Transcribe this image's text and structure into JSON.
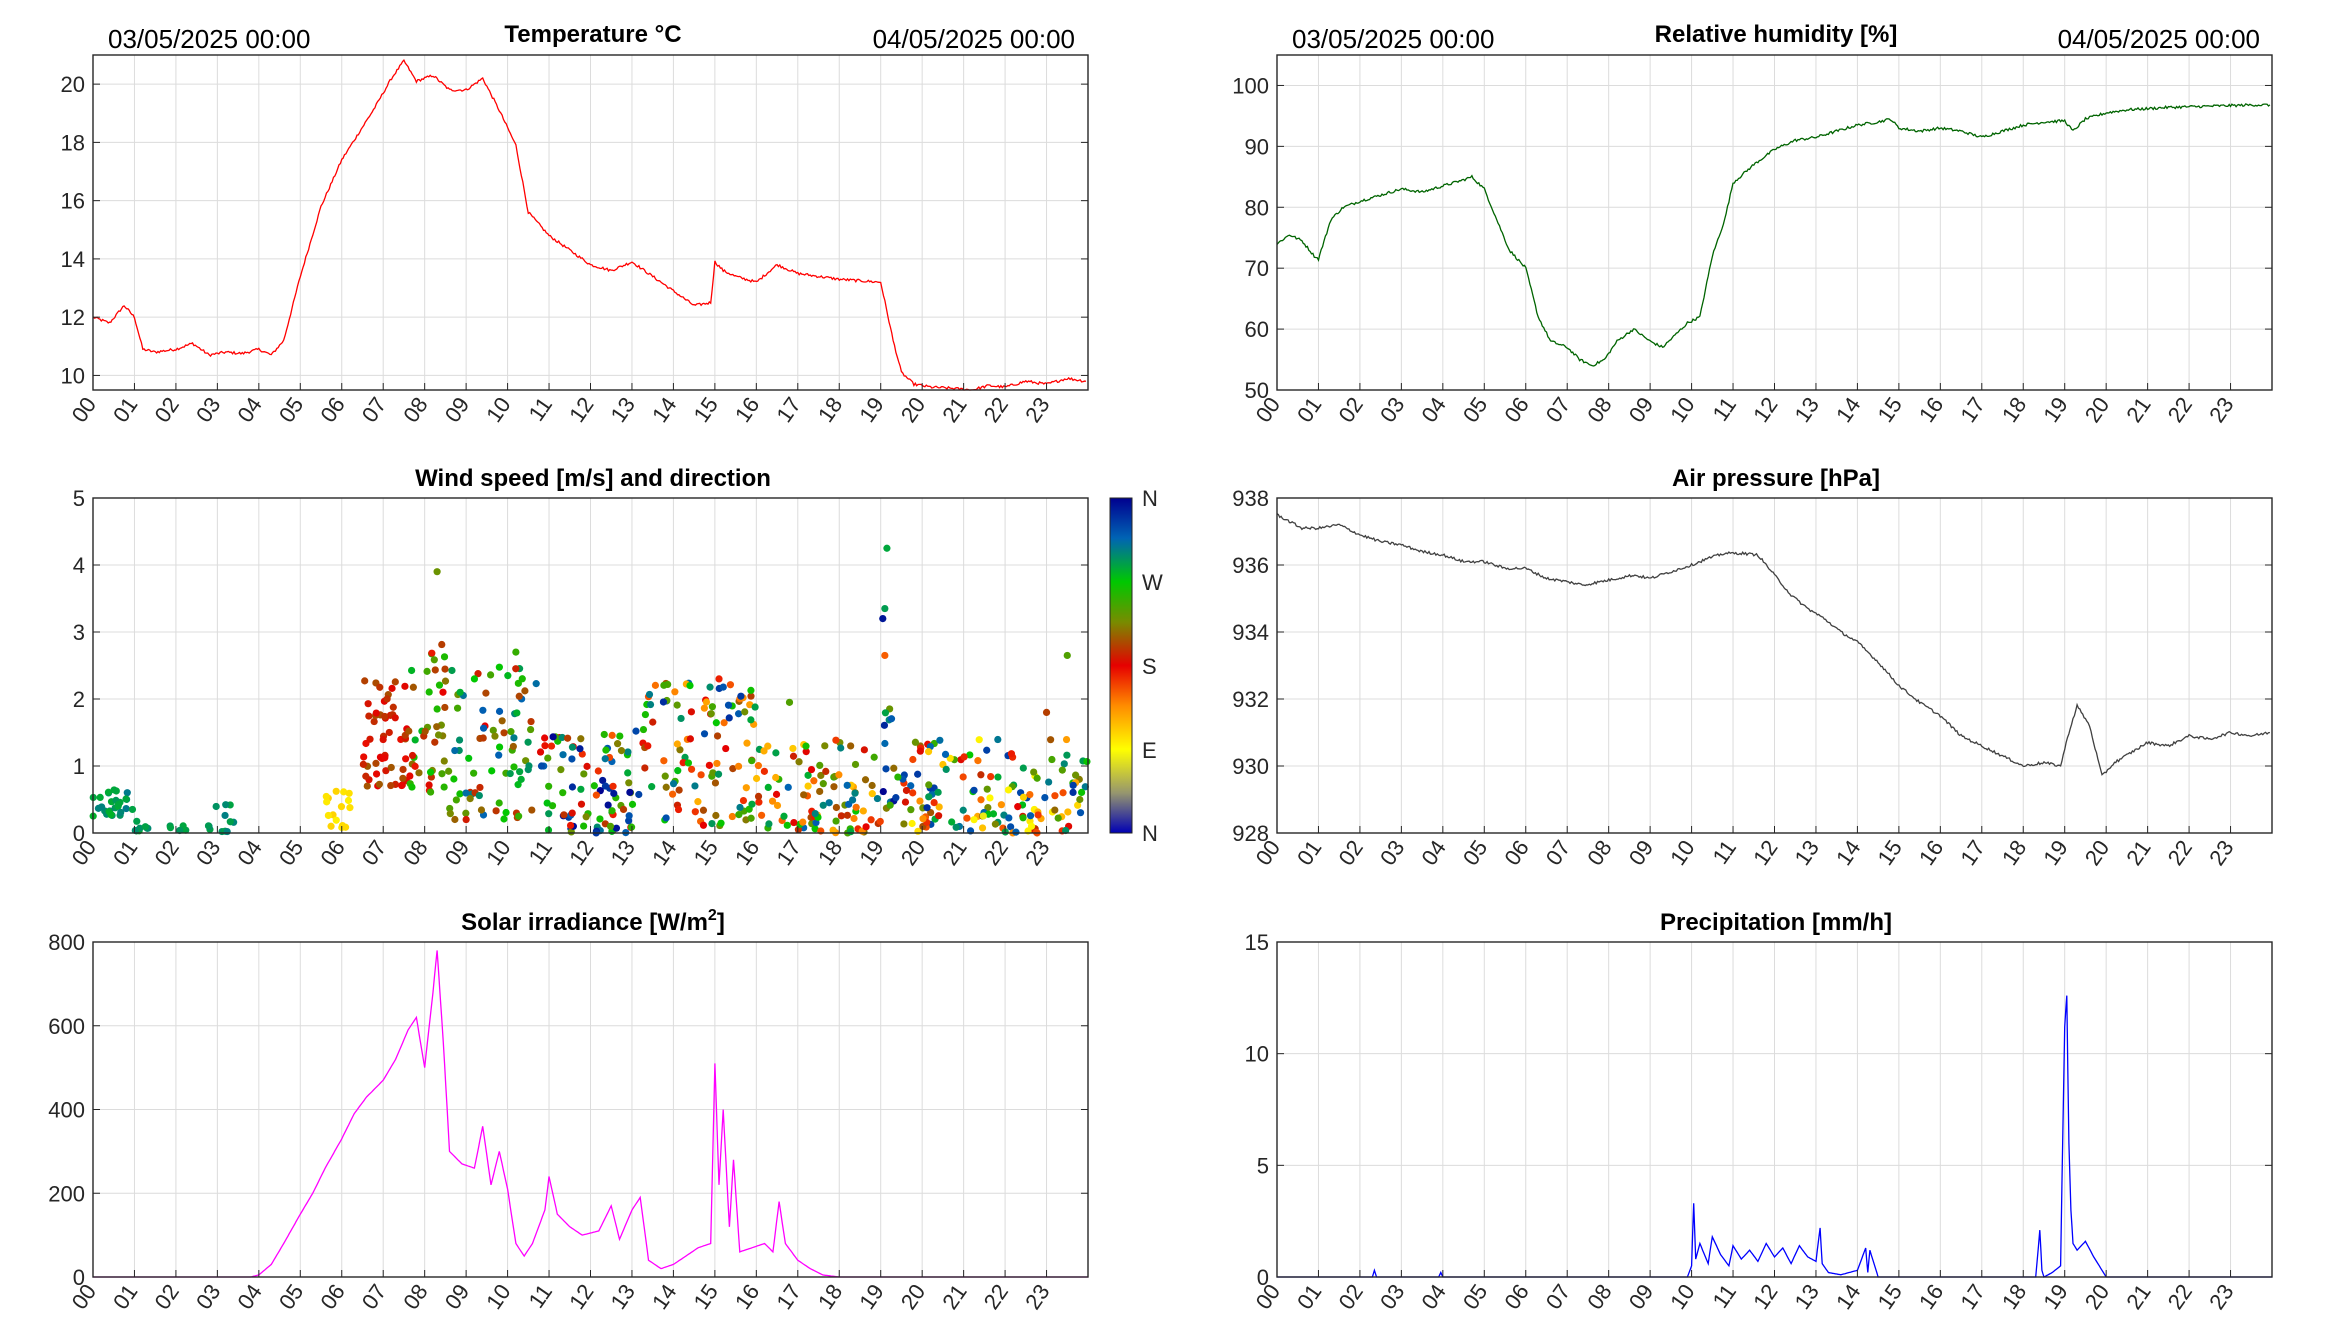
{
  "page": {
    "start_label": "03/05/2025 00:00",
    "end_label": "04/05/2025 00:00"
  },
  "hour_ticks": [
    "00",
    "01",
    "02",
    "03",
    "04",
    "05",
    "06",
    "07",
    "08",
    "09",
    "10",
    "11",
    "12",
    "13",
    "14",
    "15",
    "16",
    "17",
    "18",
    "19",
    "20",
    "21",
    "22",
    "23"
  ],
  "colorbar": {
    "labels": [
      "N",
      "W",
      "S",
      "E",
      "N"
    ],
    "colors": [
      "#00008f",
      "#00c800",
      "#e60000",
      "#ffff00",
      "#0000b4"
    ]
  },
  "chart_data": [
    {
      "id": "temperature",
      "type": "line",
      "title": "Temperature °C",
      "color": "#ff0000",
      "xlim": [
        0,
        24
      ],
      "ylim": [
        9.5,
        21
      ],
      "yticks": [
        10,
        12,
        14,
        16,
        18,
        20
      ],
      "series": [
        {
          "x": [
            0,
            0.4,
            0.75,
            1.0,
            1.2,
            1.5,
            2.0,
            2.4,
            2.8,
            3.2,
            3.6,
            4.0,
            4.3,
            4.6,
            5.0,
            5.5,
            6.0,
            6.4,
            6.8,
            7.2,
            7.5,
            7.8,
            8.2,
            8.6,
            9.0,
            9.4,
            9.8,
            10.2,
            10.5,
            11.0,
            11.5,
            12.0,
            12.5,
            13.0,
            13.4,
            14.0,
            14.5,
            14.9,
            15.0,
            15.2,
            15.5,
            16.0,
            16.5,
            17.0,
            17.5,
            18.0,
            18.5,
            19.0,
            19.3,
            19.5,
            19.8,
            20.2,
            20.8,
            21.2,
            21.6,
            22.0,
            22.5,
            23.0,
            23.5,
            23.95
          ],
          "y": [
            12.0,
            11.8,
            12.4,
            12.0,
            10.9,
            10.8,
            10.9,
            11.1,
            10.7,
            10.8,
            10.75,
            10.9,
            10.7,
            11.2,
            13.4,
            15.8,
            17.4,
            18.3,
            19.2,
            20.2,
            20.8,
            20.1,
            20.3,
            19.8,
            19.8,
            20.2,
            19.1,
            17.9,
            15.6,
            14.8,
            14.3,
            13.8,
            13.6,
            13.9,
            13.5,
            12.9,
            12.4,
            12.5,
            13.9,
            13.6,
            13.4,
            13.2,
            13.8,
            13.5,
            13.4,
            13.3,
            13.25,
            13.2,
            11.2,
            10.1,
            9.7,
            9.6,
            9.55,
            9.5,
            9.65,
            9.6,
            9.8,
            9.7,
            9.9,
            9.8
          ]
        }
      ]
    },
    {
      "id": "humidity",
      "type": "line",
      "title": "Relative humidity [%]",
      "color": "#006400",
      "xlim": [
        0,
        24
      ],
      "ylim": [
        50,
        105
      ],
      "yticks": [
        50,
        60,
        70,
        80,
        90,
        100
      ],
      "series": [
        {
          "x": [
            0,
            0.3,
            0.6,
            0.9,
            1.0,
            1.3,
            1.6,
            2.0,
            2.5,
            3.0,
            3.5,
            4.0,
            4.5,
            4.7,
            5.0,
            5.3,
            5.6,
            6.0,
            6.3,
            6.6,
            7.0,
            7.3,
            7.6,
            7.9,
            8.2,
            8.6,
            9.0,
            9.3,
            9.6,
            9.9,
            10.2,
            10.5,
            10.8,
            11.0,
            11.5,
            12.0,
            12.5,
            13.0,
            13.5,
            14.0,
            14.5,
            14.8,
            15.0,
            15.5,
            16.0,
            16.5,
            17.0,
            17.5,
            18.0,
            18.5,
            19.0,
            19.2,
            19.5,
            20.0,
            20.5,
            21.0,
            21.5,
            22.0,
            22.5,
            23.0,
            23.5,
            23.95
          ],
          "y": [
            74,
            75.5,
            74.5,
            72,
            71.5,
            78,
            80,
            81,
            82,
            83,
            82.5,
            83.5,
            84.5,
            85,
            83,
            78,
            73,
            70,
            62,
            58,
            57,
            55,
            54,
            55,
            58,
            60,
            58,
            57,
            59,
            61,
            62,
            72,
            78,
            84,
            87,
            89.5,
            91,
            91.5,
            92.5,
            93.5,
            94,
            94.5,
            93,
            92.5,
            93,
            92.5,
            91.5,
            92.5,
            93.5,
            94,
            94.2,
            92.5,
            94.5,
            95.5,
            96,
            96.2,
            96.4,
            96.5,
            96.6,
            96.7,
            96.8,
            96.8
          ]
        }
      ]
    },
    {
      "id": "wind",
      "type": "scatter",
      "title": "Wind speed [m/s] and direction",
      "xlim": [
        0,
        24
      ],
      "ylim": [
        0,
        5
      ],
      "yticks": [
        0,
        1,
        2,
        3,
        4,
        5
      ],
      "color_scale": "wind direction (N, E, S, W, N)",
      "clusters": [
        {
          "x0": 0.0,
          "x1": 1.0,
          "ymin": 0.25,
          "ymax": 0.65,
          "n": 28,
          "dir": [
            275,
            305
          ]
        },
        {
          "x0": 1.0,
          "x1": 1.35,
          "ymin": 0.02,
          "ymax": 0.25,
          "n": 8,
          "dir": [
            280,
            300
          ]
        },
        {
          "x0": 1.8,
          "x1": 2.3,
          "ymin": 0.02,
          "ymax": 0.12,
          "n": 6,
          "dir": [
            285,
            300
          ]
        },
        {
          "x0": 2.7,
          "x1": 3.4,
          "ymin": 0.02,
          "ymax": 0.45,
          "n": 12,
          "dir": [
            285,
            305
          ]
        },
        {
          "x0": 5.6,
          "x1": 6.2,
          "ymin": 0.05,
          "ymax": 0.65,
          "n": 16,
          "dir": [
            95,
            110
          ]
        },
        {
          "x0": 6.5,
          "x1": 7.6,
          "ymin": 0.7,
          "ymax": 2.3,
          "n": 55,
          "dir": [
            175,
            210
          ]
        },
        {
          "x0": 7.6,
          "x1": 8.6,
          "ymin": 0.6,
          "ymax": 2.85,
          "n": 45,
          "dir": [
            170,
            280
          ]
        },
        {
          "x0": 8.6,
          "x1": 10.8,
          "ymin": 0.2,
          "ymax": 2.5,
          "n": 80,
          "dir": [
            180,
            320
          ]
        },
        {
          "x0": 10.8,
          "x1": 13.0,
          "ymin": 0.0,
          "ymax": 1.5,
          "n": 90,
          "dir": [
            150,
            360
          ]
        },
        {
          "x0": 13.0,
          "x1": 16.0,
          "ymin": 0.1,
          "ymax": 2.3,
          "n": 110,
          "dir": [
            120,
            340
          ]
        },
        {
          "x0": 16.0,
          "x1": 19.0,
          "ymin": 0.0,
          "ymax": 1.4,
          "n": 100,
          "dir": [
            110,
            320
          ]
        },
        {
          "x0": 19.0,
          "x1": 19.4,
          "ymin": 0.3,
          "ymax": 1.9,
          "n": 14,
          "dir": [
            200,
            360
          ]
        },
        {
          "x0": 19.4,
          "x1": 24.0,
          "ymin": 0.0,
          "ymax": 1.4,
          "n": 150,
          "dir": [
            80,
            340
          ]
        }
      ],
      "points": [
        {
          "x": 8.3,
          "y": 3.9,
          "dir": 230
        },
        {
          "x": 9.2,
          "y": 2.3,
          "dir": 270
        },
        {
          "x": 10.2,
          "y": 2.7,
          "dir": 250
        },
        {
          "x": 15.1,
          "y": 2.3,
          "dir": 170
        },
        {
          "x": 16.8,
          "y": 1.95,
          "dir": 240
        },
        {
          "x": 19.15,
          "y": 4.25,
          "dir": 285
        },
        {
          "x": 19.1,
          "y": 3.35,
          "dir": 290
        },
        {
          "x": 19.05,
          "y": 3.2,
          "dir": 350
        },
        {
          "x": 19.1,
          "y": 2.65,
          "dir": 150
        },
        {
          "x": 23.5,
          "y": 2.65,
          "dir": 240
        },
        {
          "x": 23.0,
          "y": 1.8,
          "dir": 200
        },
        {
          "x": 14.4,
          "y": 2.2,
          "dir": 270
        }
      ]
    },
    {
      "id": "pressure",
      "type": "line",
      "title": "Air pressure [hPa]",
      "color": "#404040",
      "xlim": [
        0,
        24
      ],
      "ylim": [
        928,
        938
      ],
      "yticks": [
        928,
        930,
        932,
        934,
        936,
        938
      ],
      "series": [
        {
          "x": [
            0,
            0.3,
            0.6,
            1.0,
            1.5,
            2.0,
            2.5,
            3.0,
            3.5,
            4.0,
            4.5,
            5.0,
            5.5,
            6.0,
            6.5,
            7.0,
            7.4,
            7.8,
            8.2,
            8.6,
            9.0,
            9.5,
            10.0,
            10.4,
            10.8,
            11.2,
            11.6,
            12.0,
            12.4,
            12.8,
            13.2,
            13.6,
            14.0,
            14.5,
            15.0,
            15.5,
            16.0,
            16.5,
            17.0,
            17.5,
            18.0,
            18.5,
            18.9,
            19.1,
            19.3,
            19.6,
            19.9,
            20.2,
            20.6,
            21.0,
            21.5,
            22.0,
            22.5,
            23.0,
            23.5,
            23.95
          ],
          "y": [
            937.5,
            937.3,
            937.1,
            937.1,
            937.2,
            936.9,
            936.7,
            936.6,
            936.4,
            936.3,
            936.1,
            936.1,
            935.9,
            935.9,
            935.6,
            935.5,
            935.4,
            935.5,
            935.6,
            935.7,
            935.6,
            935.8,
            936.0,
            936.2,
            936.35,
            936.35,
            936.3,
            935.7,
            935.1,
            934.7,
            934.4,
            934.0,
            933.7,
            933.1,
            932.4,
            931.9,
            931.5,
            930.9,
            930.6,
            930.3,
            930.0,
            930.1,
            930.0,
            931.0,
            931.8,
            931.2,
            929.7,
            930.1,
            930.4,
            930.7,
            930.6,
            930.9,
            930.8,
            931.0,
            930.9,
            931.0
          ]
        }
      ]
    },
    {
      "id": "solar",
      "type": "line",
      "title": "Solar irradiance [W/m2]",
      "title_main": "Solar irradiance [W/m",
      "title_sup": "2",
      "title_tail": "]",
      "color": "#ff00ff",
      "xlim": [
        0,
        24
      ],
      "ylim": [
        0,
        800
      ],
      "yticks": [
        0,
        200,
        400,
        600,
        800
      ],
      "series": [
        {
          "x": [
            0,
            3.8,
            4.0,
            4.3,
            4.6,
            5.0,
            5.3,
            5.6,
            6.0,
            6.3,
            6.6,
            7.0,
            7.3,
            7.6,
            7.8,
            8.0,
            8.2,
            8.3,
            8.45,
            8.6,
            8.9,
            9.2,
            9.4,
            9.6,
            9.8,
            10.0,
            10.2,
            10.4,
            10.6,
            10.9,
            11.0,
            11.2,
            11.5,
            11.8,
            12.2,
            12.5,
            12.7,
            13.0,
            13.2,
            13.4,
            13.7,
            14.0,
            14.3,
            14.6,
            14.9,
            15.0,
            15.1,
            15.2,
            15.35,
            15.45,
            15.6,
            15.9,
            16.2,
            16.4,
            16.55,
            16.7,
            17.0,
            17.3,
            17.6,
            18.0,
            24.0
          ],
          "y": [
            0,
            0,
            5,
            30,
            80,
            150,
            200,
            260,
            330,
            390,
            430,
            470,
            520,
            590,
            620,
            500,
            680,
            780,
            560,
            300,
            270,
            260,
            360,
            220,
            300,
            210,
            80,
            50,
            80,
            160,
            240,
            150,
            120,
            100,
            110,
            170,
            90,
            160,
            190,
            40,
            20,
            30,
            50,
            70,
            80,
            510,
            220,
            400,
            120,
            280,
            60,
            70,
            80,
            60,
            180,
            80,
            40,
            20,
            5,
            0,
            0
          ]
        }
      ]
    },
    {
      "id": "precip",
      "type": "line",
      "title": "Precipitation [mm/h]",
      "color": "#0000ff",
      "xlim": [
        0,
        24
      ],
      "ylim": [
        0,
        15
      ],
      "yticks": [
        0,
        5,
        10,
        15
      ],
      "series": [
        {
          "x": [
            0,
            2.3,
            2.35,
            2.4,
            3.9,
            3.95,
            4.0,
            9.9,
            10.0,
            10.05,
            10.1,
            10.2,
            10.4,
            10.5,
            10.7,
            10.9,
            11.0,
            11.2,
            11.4,
            11.6,
            11.8,
            12.0,
            12.2,
            12.4,
            12.6,
            12.8,
            13.0,
            13.1,
            13.15,
            13.3,
            13.6,
            14.0,
            14.2,
            14.25,
            14.3,
            14.5,
            18.3,
            18.4,
            18.45,
            18.5,
            18.7,
            18.9,
            19.0,
            19.05,
            19.1,
            19.15,
            19.2,
            19.3,
            19.5,
            19.7,
            19.9,
            20.0,
            24.0
          ],
          "y": [
            0,
            0,
            0.3,
            0,
            0,
            0.2,
            0,
            0,
            0.5,
            3.3,
            0.8,
            1.5,
            0.6,
            1.8,
            1.0,
            0.5,
            1.4,
            0.8,
            1.2,
            0.7,
            1.5,
            0.9,
            1.3,
            0.6,
            1.4,
            0.9,
            0.7,
            2.2,
            0.6,
            0.2,
            0.1,
            0.3,
            1.3,
            0.2,
            1.2,
            0,
            0,
            2.1,
            0.3,
            0,
            0.2,
            0.5,
            11.2,
            12.6,
            6.0,
            3.0,
            1.5,
            1.2,
            1.6,
            0.9,
            0.3,
            0,
            0
          ]
        }
      ]
    }
  ]
}
